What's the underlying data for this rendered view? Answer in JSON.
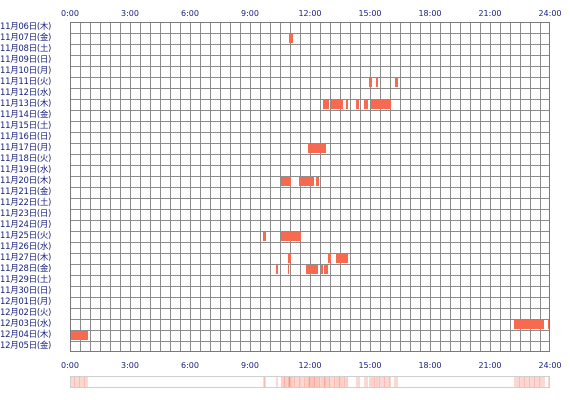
{
  "chart_data": {
    "type": "timeline",
    "x_ticks": [
      "0:00",
      "3:00",
      "6:00",
      "9:00",
      "12:00",
      "15:00",
      "18:00",
      "21:00",
      "24:00"
    ],
    "xlim": [
      "0:00",
      "24:00"
    ],
    "grid": true,
    "bar_color": "#f86a50",
    "label_color": "#1a237e",
    "rows": [
      {
        "label": "11月06日(木)",
        "intervals": []
      },
      {
        "label": "11月07日(金)",
        "intervals": [
          [
            "10:55",
            "11:05"
          ]
        ]
      },
      {
        "label": "11月08日(土)",
        "intervals": []
      },
      {
        "label": "11月09日(日)",
        "intervals": []
      },
      {
        "label": "11月10日(月)",
        "intervals": []
      },
      {
        "label": "11月11日(火)",
        "intervals": [
          [
            "14:55",
            "15:02"
          ],
          [
            "15:15",
            "15:20"
          ],
          [
            "16:12",
            "16:20"
          ]
        ]
      },
      {
        "label": "11月12日(水)",
        "intervals": []
      },
      {
        "label": "11月13日(木)",
        "intervals": [
          [
            "12:35",
            "12:55"
          ],
          [
            "13:00",
            "13:35"
          ],
          [
            "13:45",
            "13:50"
          ],
          [
            "14:15",
            "14:25"
          ],
          [
            "14:40",
            "14:50"
          ],
          [
            "15:00",
            "16:00"
          ]
        ]
      },
      {
        "label": "11月14日(金)",
        "intervals": []
      },
      {
        "label": "11月15日(土)",
        "intervals": []
      },
      {
        "label": "11月16日(日)",
        "intervals": []
      },
      {
        "label": "11月17日(月)",
        "intervals": [
          [
            "11:50",
            "12:45"
          ]
        ]
      },
      {
        "label": "11月18日(火)",
        "intervals": []
      },
      {
        "label": "11月19日(水)",
        "intervals": []
      },
      {
        "label": "11月20日(木)",
        "intervals": [
          [
            "10:30",
            "11:00"
          ],
          [
            "11:25",
            "12:10"
          ],
          [
            "12:15",
            "12:25"
          ]
        ]
      },
      {
        "label": "11月21日(金)",
        "intervals": []
      },
      {
        "label": "11月22日(土)",
        "intervals": []
      },
      {
        "label": "11月23日(日)",
        "intervals": []
      },
      {
        "label": "11月24日(月)",
        "intervals": []
      },
      {
        "label": "11月25日(火)",
        "intervals": [
          [
            "9:35",
            "9:45"
          ],
          [
            "10:30",
            "11:30"
          ]
        ]
      },
      {
        "label": "11月26日(水)",
        "intervals": []
      },
      {
        "label": "11月27日(木)",
        "intervals": [
          [
            "10:50",
            "11:00"
          ],
          [
            "12:50",
            "13:00"
          ],
          [
            "13:15",
            "13:50"
          ]
        ]
      },
      {
        "label": "11月28日(金)",
        "intervals": [
          [
            "10:15",
            "10:20"
          ],
          [
            "10:50",
            "10:55"
          ],
          [
            "11:45",
            "12:05"
          ],
          [
            "12:05",
            "12:20"
          ],
          [
            "12:30",
            "12:35"
          ],
          [
            "12:40",
            "12:50"
          ]
        ]
      },
      {
        "label": "11月29日(土)",
        "intervals": []
      },
      {
        "label": "11月30日(日)",
        "intervals": []
      },
      {
        "label": "12月01日(月)",
        "intervals": []
      },
      {
        "label": "12月02日(火)",
        "intervals": []
      },
      {
        "label": "12月03日(水)",
        "intervals": [
          [
            "22:10",
            "23:40"
          ],
          [
            "23:50",
            "24:00"
          ]
        ]
      },
      {
        "label": "12月04日(木)",
        "intervals": [
          [
            "0:00",
            "0:50"
          ]
        ]
      },
      {
        "label": "12月05日(金)",
        "intervals": []
      }
    ]
  }
}
